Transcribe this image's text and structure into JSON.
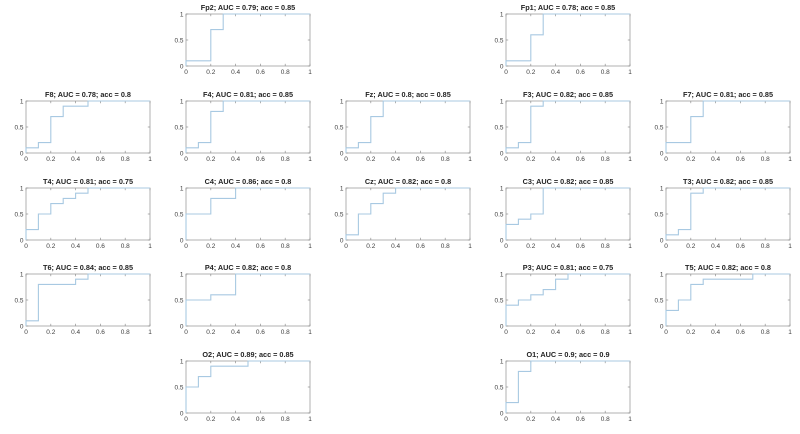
{
  "figure": {
    "background": "#ffffff",
    "layout": "EEG 10-20 montage grid, 5 columns x 5 rows"
  },
  "chart_data": {
    "type": "line",
    "curve_kind": "ROC step curves, one subplot per EEG electrode",
    "xlabel": "",
    "ylabel": "",
    "xlim": [
      0,
      1
    ],
    "ylim": [
      0,
      1
    ],
    "grid": false,
    "legend": "none",
    "xticks": [
      0,
      0.2,
      0.4,
      0.6,
      0.8,
      1
    ],
    "xtick_labels": [
      "0",
      "0.2",
      "0.4",
      "0.6",
      "0.8",
      "1"
    ],
    "yticks": [
      0,
      0.5,
      1
    ],
    "ytick_labels": [
      "0",
      "0.5",
      "1"
    ],
    "line_color": "#a8c9e2",
    "axis_color": "#8f8f8f",
    "tick_label_color": "#3f3f3f",
    "title_color": "#242424",
    "subplots": [
      {
        "electrode": "Fp2",
        "title": "Fp2; AUC = 0.79; acc = 0.85",
        "auc": 0.79,
        "acc": 0.85,
        "row": 1,
        "col": 2,
        "roc": [
          [
            0,
            0
          ],
          [
            0,
            0.1
          ],
          [
            0.2,
            0.1
          ],
          [
            0.2,
            0.7
          ],
          [
            0.3,
            0.7
          ],
          [
            0.3,
            1
          ],
          [
            1,
            1
          ]
        ]
      },
      {
        "electrode": "Fp1",
        "title": "Fp1; AUC = 0.78; acc = 0.85",
        "auc": 0.78,
        "acc": 0.85,
        "row": 1,
        "col": 4,
        "roc": [
          [
            0,
            0
          ],
          [
            0,
            0.1
          ],
          [
            0.2,
            0.1
          ],
          [
            0.2,
            0.6
          ],
          [
            0.3,
            0.6
          ],
          [
            0.3,
            1
          ],
          [
            1,
            1
          ]
        ]
      },
      {
        "electrode": "F8",
        "title": "F8; AUC = 0.78; acc = 0.8",
        "auc": 0.78,
        "acc": 0.8,
        "row": 2,
        "col": 1,
        "roc": [
          [
            0,
            0
          ],
          [
            0,
            0.1
          ],
          [
            0.1,
            0.1
          ],
          [
            0.1,
            0.2
          ],
          [
            0.2,
            0.2
          ],
          [
            0.2,
            0.7
          ],
          [
            0.3,
            0.7
          ],
          [
            0.3,
            0.9
          ],
          [
            0.5,
            0.9
          ],
          [
            0.5,
            1
          ],
          [
            1,
            1
          ]
        ]
      },
      {
        "electrode": "F4",
        "title": "F4; AUC = 0.81; acc = 0.85",
        "auc": 0.81,
        "acc": 0.85,
        "row": 2,
        "col": 2,
        "roc": [
          [
            0,
            0
          ],
          [
            0,
            0.1
          ],
          [
            0.1,
            0.1
          ],
          [
            0.1,
            0.2
          ],
          [
            0.2,
            0.2
          ],
          [
            0.2,
            0.8
          ],
          [
            0.3,
            0.8
          ],
          [
            0.3,
            1
          ],
          [
            1,
            1
          ]
        ]
      },
      {
        "electrode": "Fz",
        "title": "Fz; AUC = 0.8; acc = 0.85",
        "auc": 0.8,
        "acc": 0.85,
        "row": 2,
        "col": 3,
        "roc": [
          [
            0,
            0
          ],
          [
            0,
            0.1
          ],
          [
            0.1,
            0.1
          ],
          [
            0.1,
            0.2
          ],
          [
            0.2,
            0.2
          ],
          [
            0.2,
            0.7
          ],
          [
            0.3,
            0.7
          ],
          [
            0.3,
            1
          ],
          [
            1,
            1
          ]
        ]
      },
      {
        "electrode": "F3",
        "title": "F3; AUC = 0.82; acc = 0.85",
        "auc": 0.82,
        "acc": 0.85,
        "row": 2,
        "col": 4,
        "roc": [
          [
            0,
            0
          ],
          [
            0,
            0.1
          ],
          [
            0.1,
            0.1
          ],
          [
            0.1,
            0.2
          ],
          [
            0.2,
            0.2
          ],
          [
            0.2,
            0.9
          ],
          [
            0.3,
            0.9
          ],
          [
            0.3,
            1
          ],
          [
            1,
            1
          ]
        ]
      },
      {
        "electrode": "F7",
        "title": "F7; AUC = 0.81; acc = 0.85",
        "auc": 0.81,
        "acc": 0.85,
        "row": 2,
        "col": 5,
        "roc": [
          [
            0,
            0
          ],
          [
            0,
            0.2
          ],
          [
            0.2,
            0.2
          ],
          [
            0.2,
            0.7
          ],
          [
            0.3,
            0.7
          ],
          [
            0.3,
            1
          ],
          [
            1,
            1
          ]
        ]
      },
      {
        "electrode": "T4",
        "title": "T4; AUC = 0.81; acc = 0.75",
        "auc": 0.81,
        "acc": 0.75,
        "row": 3,
        "col": 1,
        "roc": [
          [
            0,
            0
          ],
          [
            0,
            0.2
          ],
          [
            0.1,
            0.2
          ],
          [
            0.1,
            0.5
          ],
          [
            0.2,
            0.5
          ],
          [
            0.2,
            0.7
          ],
          [
            0.3,
            0.7
          ],
          [
            0.3,
            0.8
          ],
          [
            0.4,
            0.8
          ],
          [
            0.4,
            0.9
          ],
          [
            0.5,
            0.9
          ],
          [
            0.5,
            1
          ],
          [
            1,
            1
          ]
        ]
      },
      {
        "electrode": "C4",
        "title": "C4; AUC = 0.86; acc = 0.8",
        "auc": 0.86,
        "acc": 0.8,
        "row": 3,
        "col": 2,
        "roc": [
          [
            0,
            0
          ],
          [
            0,
            0.5
          ],
          [
            0.2,
            0.5
          ],
          [
            0.2,
            0.8
          ],
          [
            0.4,
            0.8
          ],
          [
            0.4,
            1
          ],
          [
            1,
            1
          ]
        ]
      },
      {
        "electrode": "Cz",
        "title": "Cz; AUC = 0.82; acc = 0.8",
        "auc": 0.82,
        "acc": 0.8,
        "row": 3,
        "col": 3,
        "roc": [
          [
            0,
            0
          ],
          [
            0,
            0.1
          ],
          [
            0.1,
            0.1
          ],
          [
            0.1,
            0.5
          ],
          [
            0.2,
            0.5
          ],
          [
            0.2,
            0.7
          ],
          [
            0.3,
            0.7
          ],
          [
            0.3,
            0.9
          ],
          [
            0.4,
            0.9
          ],
          [
            0.4,
            1
          ],
          [
            1,
            1
          ]
        ]
      },
      {
        "electrode": "C3",
        "title": "C3; AUC = 0.82; acc = 0.85",
        "auc": 0.82,
        "acc": 0.85,
        "row": 3,
        "col": 4,
        "roc": [
          [
            0,
            0
          ],
          [
            0,
            0.3
          ],
          [
            0.1,
            0.3
          ],
          [
            0.1,
            0.4
          ],
          [
            0.2,
            0.4
          ],
          [
            0.2,
            0.5
          ],
          [
            0.3,
            0.5
          ],
          [
            0.3,
            1
          ],
          [
            1,
            1
          ]
        ]
      },
      {
        "electrode": "T3",
        "title": "T3; AUC = 0.82; acc = 0.85",
        "auc": 0.82,
        "acc": 0.85,
        "row": 3,
        "col": 5,
        "roc": [
          [
            0,
            0
          ],
          [
            0,
            0.1
          ],
          [
            0.1,
            0.1
          ],
          [
            0.1,
            0.2
          ],
          [
            0.2,
            0.2
          ],
          [
            0.2,
            0.9
          ],
          [
            0.3,
            0.9
          ],
          [
            0.3,
            1
          ],
          [
            1,
            1
          ]
        ]
      },
      {
        "electrode": "T6",
        "title": "T6; AUC = 0.84; acc = 0.85",
        "auc": 0.84,
        "acc": 0.85,
        "row": 4,
        "col": 1,
        "roc": [
          [
            0,
            0
          ],
          [
            0,
            0.1
          ],
          [
            0.1,
            0.1
          ],
          [
            0.1,
            0.8
          ],
          [
            0.4,
            0.8
          ],
          [
            0.4,
            0.9
          ],
          [
            0.5,
            0.9
          ],
          [
            0.5,
            1
          ],
          [
            1,
            1
          ]
        ]
      },
      {
        "electrode": "P4",
        "title": "P4; AUC = 0.82; acc = 0.8",
        "auc": 0.82,
        "acc": 0.8,
        "row": 4,
        "col": 2,
        "roc": [
          [
            0,
            0
          ],
          [
            0,
            0.5
          ],
          [
            0.2,
            0.5
          ],
          [
            0.2,
            0.6
          ],
          [
            0.4,
            0.6
          ],
          [
            0.4,
            1
          ],
          [
            1,
            1
          ]
        ]
      },
      {
        "electrode": "P3",
        "title": "P3; AUC = 0.81; acc = 0.75",
        "auc": 0.81,
        "acc": 0.75,
        "row": 4,
        "col": 4,
        "roc": [
          [
            0,
            0
          ],
          [
            0,
            0.4
          ],
          [
            0.1,
            0.4
          ],
          [
            0.1,
            0.5
          ],
          [
            0.2,
            0.5
          ],
          [
            0.2,
            0.6
          ],
          [
            0.3,
            0.6
          ],
          [
            0.3,
            0.7
          ],
          [
            0.4,
            0.7
          ],
          [
            0.4,
            0.9
          ],
          [
            0.5,
            0.9
          ],
          [
            0.5,
            1
          ],
          [
            1,
            1
          ]
        ]
      },
      {
        "electrode": "T5",
        "title": "T5; AUC = 0.82; acc = 0.8",
        "auc": 0.82,
        "acc": 0.8,
        "row": 4,
        "col": 5,
        "roc": [
          [
            0,
            0
          ],
          [
            0,
            0.3
          ],
          [
            0.1,
            0.3
          ],
          [
            0.1,
            0.5
          ],
          [
            0.2,
            0.5
          ],
          [
            0.2,
            0.8
          ],
          [
            0.3,
            0.8
          ],
          [
            0.3,
            0.9
          ],
          [
            0.7,
            0.9
          ],
          [
            0.7,
            1
          ],
          [
            1,
            1
          ]
        ]
      },
      {
        "electrode": "O2",
        "title": "O2; AUC = 0.89; acc = 0.85",
        "auc": 0.89,
        "acc": 0.85,
        "row": 5,
        "col": 2,
        "roc": [
          [
            0,
            0
          ],
          [
            0,
            0.5
          ],
          [
            0.1,
            0.5
          ],
          [
            0.1,
            0.7
          ],
          [
            0.2,
            0.7
          ],
          [
            0.2,
            0.9
          ],
          [
            0.5,
            0.9
          ],
          [
            0.5,
            1
          ],
          [
            1,
            1
          ]
        ]
      },
      {
        "electrode": "O1",
        "title": "O1; AUC = 0.9; acc = 0.9",
        "auc": 0.9,
        "acc": 0.9,
        "row": 5,
        "col": 4,
        "roc": [
          [
            0,
            0
          ],
          [
            0,
            0.2
          ],
          [
            0.1,
            0.2
          ],
          [
            0.1,
            0.8
          ],
          [
            0.2,
            0.8
          ],
          [
            0.2,
            1
          ],
          [
            1,
            1
          ]
        ]
      }
    ]
  }
}
